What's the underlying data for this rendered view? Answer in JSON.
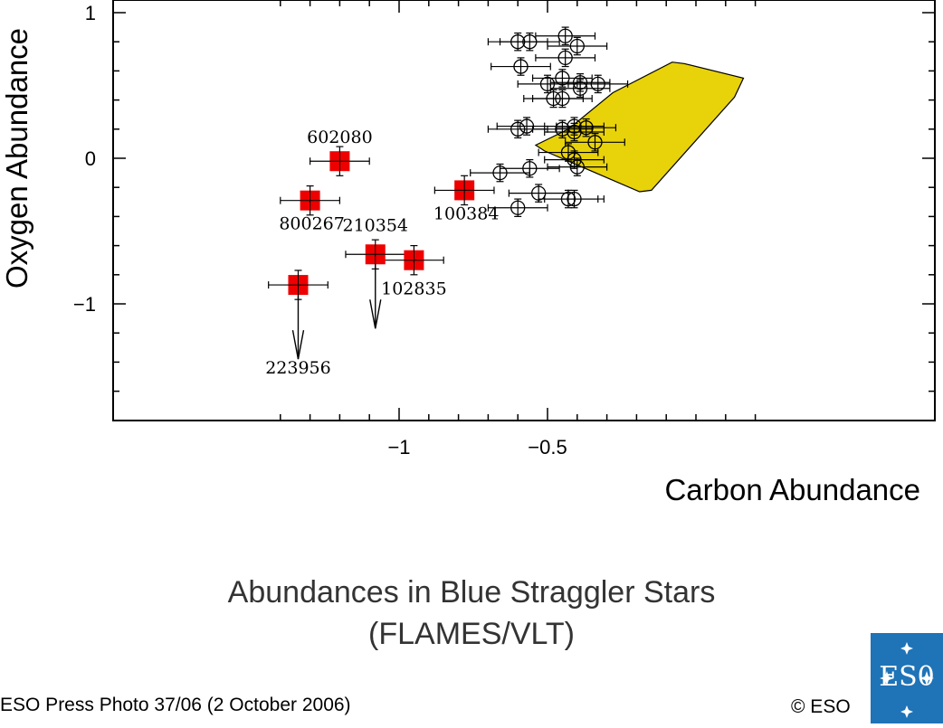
{
  "chart_data": {
    "type": "scatter",
    "title": "Abundances in Blue Straggler Stars",
    "subtitle": "(FLAMES/VLT)",
    "xlabel": "Carbon Abundance",
    "ylabel": "Oxygen Abundance",
    "xlim": [
      -1.5,
      0.25
    ],
    "ylim": [
      -1.8,
      1.05
    ],
    "x_ticks": [
      -1,
      -0.5
    ],
    "x_tick_labels": [
      "−1",
      "−0.5"
    ],
    "y_ticks": [
      1,
      0,
      -1
    ],
    "y_tick_labels": [
      "1",
      "0",
      "−1"
    ],
    "grid": false,
    "series": [
      {
        "marker": "filled-square",
        "color": "#ee0000",
        "points": [
          {
            "label": "602080",
            "x": -1.2,
            "y": -0.02,
            "xerr": 0.1,
            "yerr": 0.1,
            "upper_limit": false
          },
          {
            "label": "800267",
            "x": -1.3,
            "y": -0.29,
            "xerr": 0.1,
            "yerr": 0.1,
            "upper_limit": false
          },
          {
            "label": "210354",
            "x": -1.08,
            "y": -0.66,
            "xerr": 0.1,
            "yerr": 0.1,
            "upper_limit": true
          },
          {
            "label": "102835",
            "x": -0.95,
            "y": -0.7,
            "xerr": 0.1,
            "yerr": 0.1,
            "upper_limit": false
          },
          {
            "label": "100384",
            "x": -0.78,
            "y": -0.22,
            "xerr": 0.1,
            "yerr": 0.1,
            "upper_limit": false
          },
          {
            "label": "223956",
            "x": -1.34,
            "y": -0.87,
            "xerr": 0.1,
            "yerr": 0.1,
            "upper_limit": true
          }
        ]
      },
      {
        "marker": "open-circle",
        "color": "#000000",
        "points": [
          {
            "x": -0.6,
            "y": 0.8,
            "xerr": 0.1,
            "yerr": 0.06
          },
          {
            "x": -0.56,
            "y": 0.8,
            "xerr": 0.1,
            "yerr": 0.06
          },
          {
            "x": -0.44,
            "y": 0.84,
            "xerr": 0.1,
            "yerr": 0.06
          },
          {
            "x": -0.4,
            "y": 0.77,
            "xerr": 0.1,
            "yerr": 0.06
          },
          {
            "x": -0.59,
            "y": 0.63,
            "xerr": 0.1,
            "yerr": 0.06
          },
          {
            "x": -0.44,
            "y": 0.69,
            "xerr": 0.1,
            "yerr": 0.06
          },
          {
            "x": -0.5,
            "y": 0.51,
            "xerr": 0.1,
            "yerr": 0.06
          },
          {
            "x": -0.45,
            "y": 0.55,
            "xerr": 0.1,
            "yerr": 0.06
          },
          {
            "x": -0.39,
            "y": 0.52,
            "xerr": 0.1,
            "yerr": 0.06
          },
          {
            "x": -0.39,
            "y": 0.48,
            "xerr": 0.1,
            "yerr": 0.06
          },
          {
            "x": -0.33,
            "y": 0.51,
            "xerr": 0.1,
            "yerr": 0.06
          },
          {
            "x": -0.48,
            "y": 0.41,
            "xerr": 0.1,
            "yerr": 0.06
          },
          {
            "x": -0.45,
            "y": 0.41,
            "xerr": 0.1,
            "yerr": 0.06
          },
          {
            "x": -0.6,
            "y": 0.2,
            "xerr": 0.1,
            "yerr": 0.06
          },
          {
            "x": -0.57,
            "y": 0.22,
            "xerr": 0.1,
            "yerr": 0.06
          },
          {
            "x": -0.45,
            "y": 0.2,
            "xerr": 0.1,
            "yerr": 0.06
          },
          {
            "x": -0.41,
            "y": 0.22,
            "xerr": 0.1,
            "yerr": 0.06
          },
          {
            "x": -0.41,
            "y": 0.18,
            "xerr": 0.1,
            "yerr": 0.06
          },
          {
            "x": -0.37,
            "y": 0.21,
            "xerr": 0.1,
            "yerr": 0.06
          },
          {
            "x": -0.34,
            "y": 0.11,
            "xerr": 0.1,
            "yerr": 0.06
          },
          {
            "x": -0.43,
            "y": 0.04,
            "xerr": 0.1,
            "yerr": 0.06
          },
          {
            "x": -0.41,
            "y": -0.01,
            "xerr": 0.1,
            "yerr": 0.06
          },
          {
            "x": -0.4,
            "y": -0.06,
            "xerr": 0.1,
            "yerr": 0.06
          },
          {
            "x": -0.66,
            "y": -0.1,
            "xerr": 0.1,
            "yerr": 0.06
          },
          {
            "x": -0.56,
            "y": -0.07,
            "xerr": 0.1,
            "yerr": 0.06
          },
          {
            "x": -0.53,
            "y": -0.24,
            "xerr": 0.1,
            "yerr": 0.06
          },
          {
            "x": -0.43,
            "y": -0.28,
            "xerr": 0.1,
            "yerr": 0.06
          },
          {
            "x": -0.41,
            "y": -0.28,
            "xerr": 0.1,
            "yerr": 0.06
          },
          {
            "x": -0.6,
            "y": -0.34,
            "xerr": 0.1,
            "yerr": 0.06
          }
        ]
      }
    ],
    "region": {
      "color": "#e8d20a",
      "polygon": [
        [
          -0.54,
          0.09
        ],
        [
          -0.43,
          0.2
        ],
        [
          -0.28,
          0.45
        ],
        [
          -0.08,
          0.66
        ],
        [
          -0.04,
          0.65
        ],
        [
          0.16,
          0.55
        ],
        [
          0.13,
          0.42
        ],
        [
          -0.15,
          -0.22
        ],
        [
          -0.19,
          -0.23
        ],
        [
          -0.51,
          0.05
        ]
      ]
    }
  },
  "footer": {
    "credit": "ESO Press Photo 37/06 (2 October 2006)",
    "copyright": "© ESO",
    "logo_text": "ES0"
  }
}
